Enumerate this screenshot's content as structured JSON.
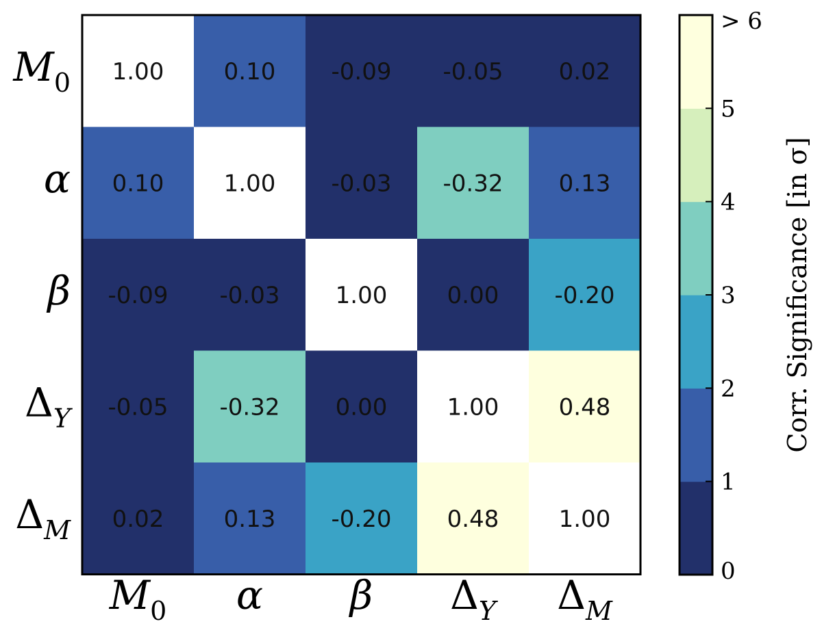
{
  "chart_data": {
    "type": "heatmap",
    "row_labels": [
      {
        "base": "M",
        "sub": "0",
        "sub_italic": false
      },
      {
        "base": "α",
        "sub": "",
        "sub_italic": false
      },
      {
        "base": "β",
        "sub": "",
        "sub_italic": false
      },
      {
        "base": "Δ",
        "sub": "Y",
        "sub_italic": true
      },
      {
        "base": "Δ",
        "sub": "M",
        "sub_italic": true
      }
    ],
    "col_labels": [
      {
        "base": "M",
        "sub": "0",
        "sub_italic": false
      },
      {
        "base": "α",
        "sub": "",
        "sub_italic": false
      },
      {
        "base": "β",
        "sub": "",
        "sub_italic": false
      },
      {
        "base": "Δ",
        "sub": "Y",
        "sub_italic": true
      },
      {
        "base": "Δ",
        "sub": "M",
        "sub_italic": true
      }
    ],
    "values": [
      [
        1.0,
        0.1,
        -0.09,
        -0.05,
        0.02
      ],
      [
        0.1,
        1.0,
        -0.03,
        -0.32,
        0.13
      ],
      [
        -0.09,
        -0.03,
        1.0,
        0.0,
        -0.2
      ],
      [
        -0.05,
        -0.32,
        0.0,
        1.0,
        0.48
      ],
      [
        0.02,
        0.13,
        -0.2,
        0.48,
        1.0
      ]
    ],
    "cell_text": [
      [
        "1.00",
        "0.10",
        "-0.09",
        "-0.05",
        "0.02"
      ],
      [
        "0.10",
        "1.00",
        "-0.03",
        "-0.32",
        "0.13"
      ],
      [
        "-0.09",
        "-0.03",
        "1.00",
        "0.00",
        "-0.20"
      ],
      [
        "-0.05",
        "-0.32",
        "0.00",
        "1.00",
        "0.48"
      ],
      [
        "0.02",
        "0.13",
        "-0.20",
        "0.48",
        "1.00"
      ]
    ],
    "significance_bins": [
      [
        6,
        1,
        0,
        0,
        0
      ],
      [
        1,
        6,
        0,
        3,
        1
      ],
      [
        0,
        0,
        6,
        0,
        2
      ],
      [
        0,
        3,
        0,
        6,
        5
      ],
      [
        0,
        1,
        2,
        5,
        6
      ]
    ],
    "colorbar": {
      "label_prefix": "Corr. Significance ",
      "label_unit": "[in σ]",
      "ticks": [
        "0",
        "1",
        "2",
        "3",
        "4",
        "5",
        "> 6"
      ],
      "range": [
        0,
        6
      ],
      "colors": [
        "#22306a",
        "#385ea9",
        "#3aa3c6",
        "#7fcec0",
        "#d6efbc",
        "#feffde"
      ]
    },
    "diagonal_color": "#ffffff",
    "frame_color": "#000000"
  }
}
